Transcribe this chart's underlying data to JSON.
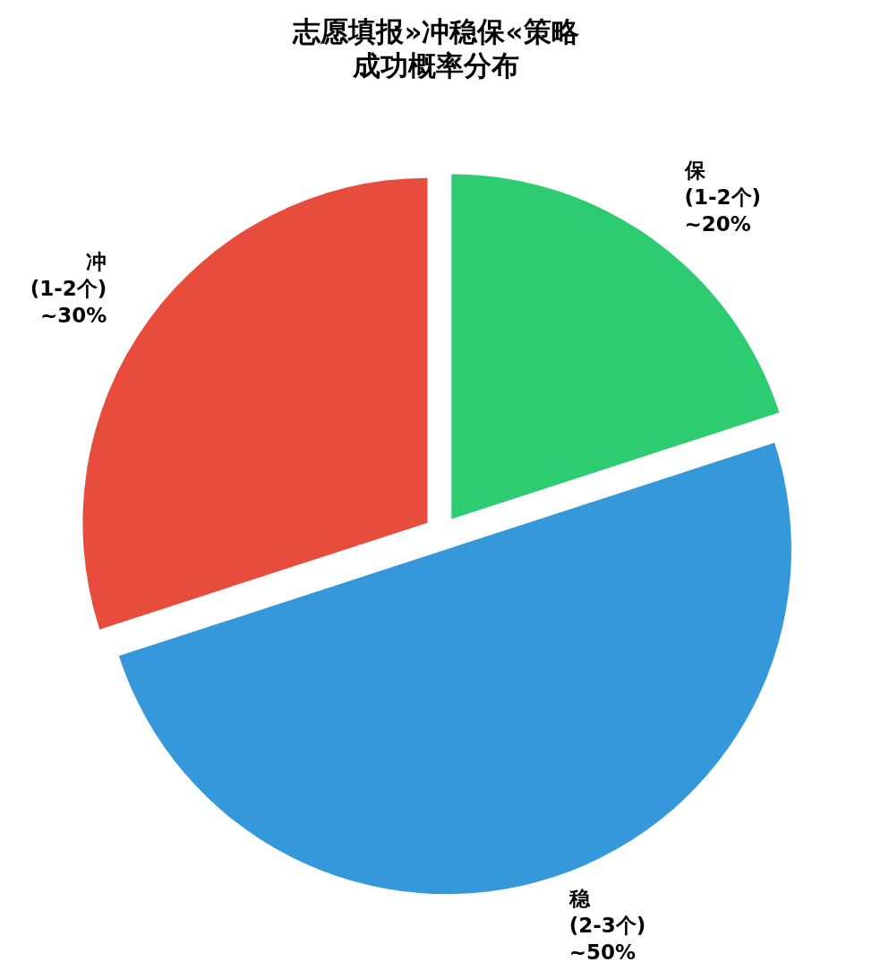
{
  "chart_data": {
    "type": "pie",
    "title": "志愿填报»冲稳保«策略",
    "subtitle": "成功概率分布",
    "categories": [
      "冲\n(1-2个)",
      "稳\n(2-3个)",
      "保\n(1-2个)"
    ],
    "values": [
      30,
      50,
      20
    ],
    "colors": [
      "#e74c3c",
      "#3498db",
      "#2ecc71"
    ],
    "value_labels": [
      "~30%",
      "~50%",
      "~20%"
    ]
  }
}
